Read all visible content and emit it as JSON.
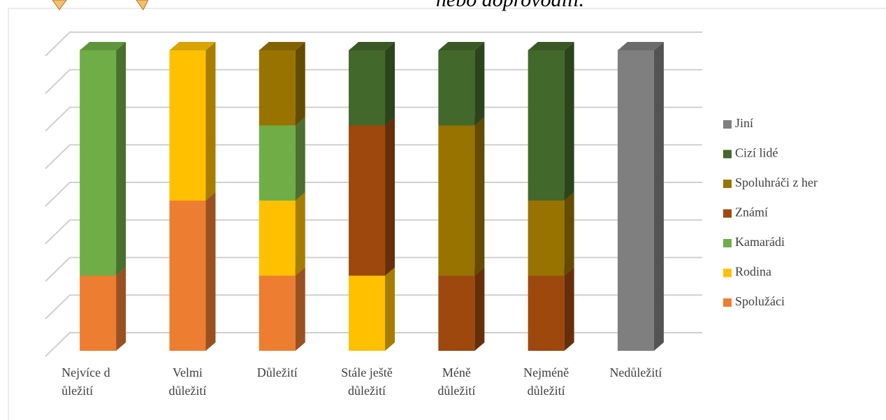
{
  "chart_data": {
    "type": "bar",
    "stacked": true,
    "title": "nebo doprovodili.",
    "categories": [
      "Nejvíce důležití",
      "Velmi důležití",
      "Důležití",
      "Stále ještě důležití",
      "Méně důležití",
      "Nejméně důležití",
      "Nedůležití"
    ],
    "series": [
      {
        "name": "Spolužáci",
        "color": "#ED7D31",
        "values": [
          2,
          4,
          2,
          0,
          0,
          0,
          0
        ]
      },
      {
        "name": "Rodina",
        "color": "#FFC000",
        "values": [
          0,
          4,
          2,
          2,
          0,
          0,
          0
        ]
      },
      {
        "name": "Kamarádi",
        "color": "#70AD47",
        "values": [
          6,
          0,
          2,
          0,
          0,
          0,
          0
        ]
      },
      {
        "name": "Známí",
        "color": "#9E480E",
        "values": [
          0,
          0,
          0,
          4,
          2,
          2,
          0
        ]
      },
      {
        "name": "Spoluhráči z her",
        "color": "#997300",
        "values": [
          0,
          0,
          2,
          0,
          4,
          2,
          0
        ]
      },
      {
        "name": "Cizí lidé",
        "color": "#43682B",
        "values": [
          0,
          0,
          0,
          2,
          2,
          4,
          0
        ]
      },
      {
        "name": "Jiní",
        "color": "#7F7F7F",
        "values": [
          0,
          0,
          0,
          0,
          0,
          0,
          8
        ]
      }
    ],
    "ylim": [
      0,
      8
    ],
    "yticks": [
      0,
      1,
      2,
      3,
      4,
      5,
      6,
      7,
      8
    ],
    "grid": true,
    "legend": "right"
  }
}
